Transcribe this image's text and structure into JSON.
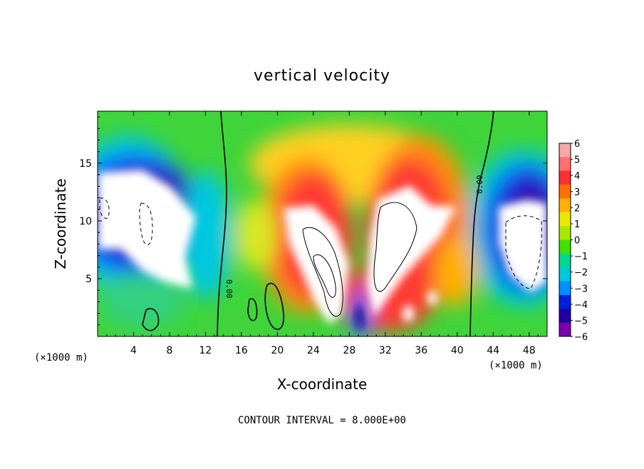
{
  "chart_data": {
    "type": "heatmap",
    "title": "vertical velocity",
    "xlabel": "X-coordinate",
    "ylabel": "Z-coordinate",
    "x_unit_left": "(×1000 m)",
    "x_unit_right": "(×1000 m)",
    "footer": "CONTOUR INTERVAL = 8.000E+00",
    "xlim": [
      0,
      50
    ],
    "ylim": [
      0,
      19.5
    ],
    "x_ticks": [
      4,
      8,
      12,
      16,
      20,
      24,
      28,
      32,
      36,
      40,
      44,
      48
    ],
    "y_ticks": [
      5,
      10,
      15
    ],
    "colorbar": {
      "levels": [
        6,
        5,
        4,
        3,
        2,
        1,
        0,
        -1,
        -2,
        -3,
        -4,
        -5,
        -6
      ],
      "labels": [
        "6",
        "5",
        "4",
        "3",
        "2",
        "1",
        "0",
        "−1",
        "−2",
        "−3",
        "−4",
        "−5",
        "−6"
      ],
      "colors": [
        "#f7a8a8",
        "#ff7070",
        "#ff3030",
        "#ff7000",
        "#ffb000",
        "#e8e800",
        "#a8e800",
        "#40e000",
        "#00d890",
        "#00c8d8",
        "#0090ff",
        "#0020e0",
        "#2000a0",
        "#7a00b0"
      ]
    },
    "contour_labels": [
      "0.00",
      "0.00"
    ],
    "regions": [
      {
        "name": "left-downdraft-white",
        "sign": "negative",
        "value": -8,
        "x": [
          0,
          12
        ],
        "z": [
          5,
          14
        ]
      },
      {
        "name": "updraft-core-1",
        "sign": "positive",
        "value": 8,
        "x": [
          21,
          28
        ],
        "z": [
          2,
          12
        ]
      },
      {
        "name": "updraft-core-2",
        "sign": "positive",
        "value": 8,
        "x": [
          30,
          38
        ],
        "z": [
          3,
          12.5
        ]
      },
      {
        "name": "right-downdraft-white",
        "sign": "negative",
        "value": -8,
        "x": [
          44,
          50
        ],
        "z": [
          5,
          13
        ]
      }
    ]
  }
}
